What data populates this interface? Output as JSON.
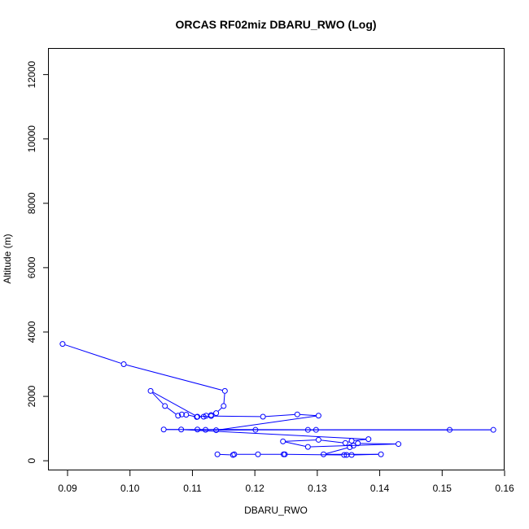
{
  "chart_data": {
    "type": "line",
    "title": "ORCAS RF02miz DBARU_RWO (Log)",
    "xlabel": "DBARU_RWO",
    "ylabel": "Altitude (m)",
    "xlim": [
      0.087,
      0.16
    ],
    "ylim": [
      -300,
      12800
    ],
    "x_ticks": [
      0.09,
      0.1,
      0.11,
      0.12,
      0.13,
      0.14,
      0.15,
      0.16
    ],
    "x_tick_labels": [
      "0.09",
      "0.10",
      "0.11",
      "0.12",
      "0.13",
      "0.14",
      "0.15",
      "0.16"
    ],
    "y_ticks": [
      0,
      2000,
      4000,
      6000,
      8000,
      10000,
      12000
    ],
    "y_tick_labels": [
      "0",
      "2000",
      "4000",
      "6000",
      "8000",
      "10000",
      "12000"
    ],
    "grid": false,
    "color": "#0000ff",
    "marker": "open-circle",
    "series": [
      {
        "x": [
          0.0892,
          0.099,
          0.1152,
          0.115,
          0.1138,
          0.113,
          0.1122,
          0.1118,
          0.1107,
          0.109,
          0.1083,
          0.1077,
          0.1056,
          0.1033,
          0.1108,
          0.113,
          0.1213,
          0.1268,
          0.1302,
          0.1138,
          0.1201,
          0.1298,
          0.1285,
          0.1512,
          0.1108,
          0.1121,
          0.1582,
          0.1054,
          0.1082,
          0.1382,
          0.1355,
          0.1345,
          0.1302,
          0.1245,
          0.1285,
          0.143,
          0.1365,
          0.1358,
          0.1352,
          0.131,
          0.1402,
          0.1355,
          0.1347,
          0.1343,
          0.1246,
          0.1248,
          0.1205,
          0.1167,
          0.1165,
          0.114
        ],
        "y": [
          3630,
          3000,
          2170,
          1700,
          1480,
          1420,
          1400,
          1370,
          1360,
          1430,
          1440,
          1400,
          1700,
          2170,
          1370,
          1390,
          1370,
          1440,
          1400,
          950,
          960,
          960,
          960,
          960,
          970,
          960,
          960,
          970,
          970,
          670,
          620,
          550,
          650,
          600,
          430,
          520,
          540,
          470,
          420,
          200,
          200,
          180,
          180,
          180,
          200,
          200,
          200,
          200,
          180,
          200
        ]
      }
    ]
  }
}
